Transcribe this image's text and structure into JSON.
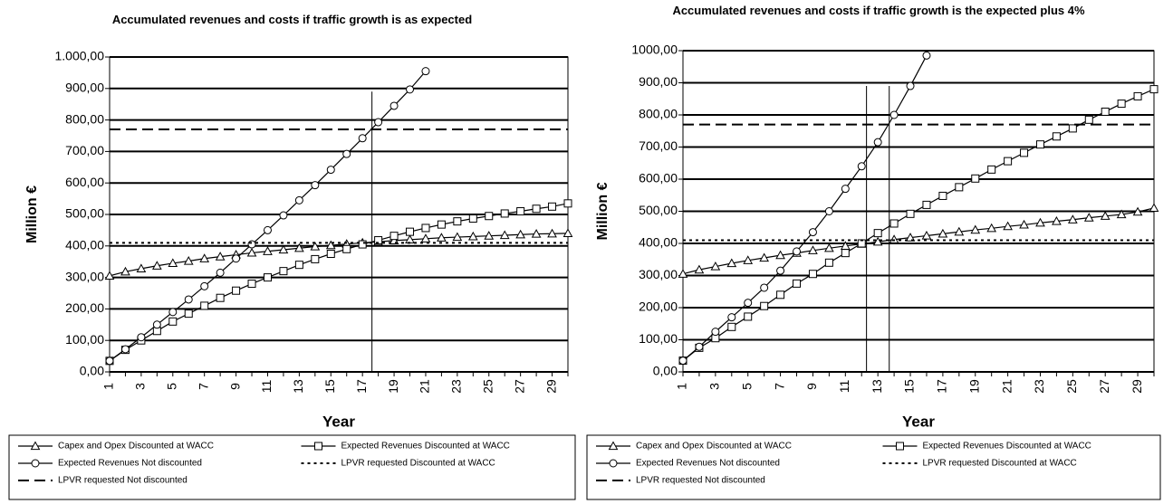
{
  "chart_data": [
    {
      "type": "line",
      "title": "Accumulated revenues and costs if traffic growth is as expected",
      "x_label": "Year",
      "y_label": "Million €",
      "categories": [
        "1",
        null,
        "3",
        null,
        "5",
        null,
        "7",
        null,
        "9",
        null,
        "11",
        null,
        "13",
        null,
        "15",
        null,
        "17",
        null,
        "19",
        null,
        "21",
        null,
        "23",
        null,
        "25",
        null,
        "27",
        null,
        "29",
        null
      ],
      "ylim": [
        0,
        1000
      ],
      "yticks": [
        {
          "value": 0,
          "label": "0,00"
        },
        {
          "value": 100,
          "label": "100,00"
        },
        {
          "value": 200,
          "label": "200,00"
        },
        {
          "value": 300,
          "label": "300,00"
        },
        {
          "value": 400,
          "label": "400,00"
        },
        {
          "value": 500,
          "label": "500,00"
        },
        {
          "value": 600,
          "label": "600,00"
        },
        {
          "value": 700,
          "label": "700,00"
        },
        {
          "value": 800,
          "label": "800,00"
        },
        {
          "value": 900,
          "label": "900,00"
        },
        {
          "value": 1000,
          "label": "1.000,00"
        }
      ],
      "grid": true,
      "vlines": [
        17.6
      ],
      "series": [
        {
          "name": "Capex and Opex Discounted at WACC",
          "color": "#000000",
          "marker": "triangle",
          "values": [
            305,
            318,
            328,
            337,
            345,
            352,
            360,
            366,
            372,
            378,
            383,
            388,
            393,
            398,
            402,
            406,
            410,
            413,
            417,
            420,
            423,
            426,
            428,
            430,
            432,
            434,
            436,
            438,
            439,
            440
          ]
        },
        {
          "name": "Expected Revenues Discounted at WACC",
          "color": "#000000",
          "marker": "square",
          "values": [
            35,
            70,
            100,
            130,
            160,
            185,
            210,
            235,
            258,
            280,
            300,
            320,
            340,
            358,
            375,
            390,
            405,
            418,
            432,
            445,
            457,
            468,
            478,
            487,
            495,
            503,
            510,
            518,
            525,
            535
          ]
        },
        {
          "name": "Expected Revenues Not discounted",
          "color": "#000000",
          "marker": "circle",
          "values": [
            35,
            72,
            110,
            150,
            190,
            230,
            272,
            315,
            360,
            405,
            450,
            497,
            545,
            593,
            642,
            692,
            742,
            793,
            845,
            897,
            955,
            null,
            null,
            null,
            null,
            null,
            null,
            null,
            null,
            null
          ]
        },
        {
          "name": "LPVR requested Discounted at WACC",
          "color": "#000000",
          "dash": "dotted",
          "level": 410
        },
        {
          "name": "LPVR requested Not discounted",
          "color": "#000000",
          "dash": "dashed",
          "level": 770
        }
      ]
    },
    {
      "type": "line",
      "title": "Accumulated revenues and costs if traffic growth is the expected plus 4%",
      "x_label": "Year",
      "y_label": "Million €",
      "categories": [
        "1",
        null,
        "3",
        null,
        "5",
        null,
        "7",
        null,
        "9",
        null,
        "11",
        null,
        "13",
        null,
        "15",
        null,
        "17",
        null,
        "19",
        null,
        "21",
        null,
        "23",
        null,
        "25",
        null,
        "27",
        null,
        "29",
        null
      ],
      "ylim": [
        0,
        1000
      ],
      "yticks": [
        {
          "value": 0,
          "label": "0,00"
        },
        {
          "value": 100,
          "label": "100,00"
        },
        {
          "value": 200,
          "label": "200,00"
        },
        {
          "value": 300,
          "label": "300,00"
        },
        {
          "value": 400,
          "label": "400,00"
        },
        {
          "value": 500,
          "label": "500,00"
        },
        {
          "value": 600,
          "label": "600,00"
        },
        {
          "value": 700,
          "label": "700,00"
        },
        {
          "value": 800,
          "label": "800,00"
        },
        {
          "value": 900,
          "label": "900,00"
        },
        {
          "value": 1000,
          "label": "1000,00"
        }
      ],
      "grid": true,
      "vlines": [
        12.3,
        13.7
      ],
      "series": [
        {
          "name": "Capex and Opex Discounted at WACC",
          "color": "#000000",
          "marker": "triangle",
          "values": [
            305,
            318,
            328,
            338,
            347,
            355,
            363,
            370,
            378,
            385,
            392,
            398,
            405,
            412,
            418,
            424,
            430,
            436,
            442,
            447,
            453,
            458,
            464,
            469,
            474,
            480,
            485,
            490,
            498,
            510
          ]
        },
        {
          "name": "Expected Revenues Discounted at WACC",
          "color": "#000000",
          "marker": "square",
          "values": [
            35,
            75,
            105,
            140,
            172,
            205,
            240,
            275,
            305,
            340,
            370,
            400,
            432,
            462,
            492,
            520,
            548,
            575,
            602,
            630,
            656,
            682,
            708,
            733,
            758,
            785,
            810,
            835,
            858,
            880
          ]
        },
        {
          "name": "Expected Revenues Not discounted",
          "color": "#000000",
          "marker": "circle",
          "values": [
            35,
            78,
            125,
            170,
            215,
            262,
            315,
            375,
            435,
            500,
            570,
            640,
            715,
            800,
            890,
            985,
            null,
            null,
            null,
            null,
            null,
            null,
            null,
            null,
            null,
            null,
            null,
            null,
            null,
            null
          ]
        },
        {
          "name": "LPVR requested Discounted at WACC",
          "color": "#000000",
          "dash": "dotted",
          "level": 410
        },
        {
          "name": "LPVR requested Not discounted",
          "color": "#000000",
          "dash": "dashed",
          "level": 770
        }
      ]
    }
  ]
}
